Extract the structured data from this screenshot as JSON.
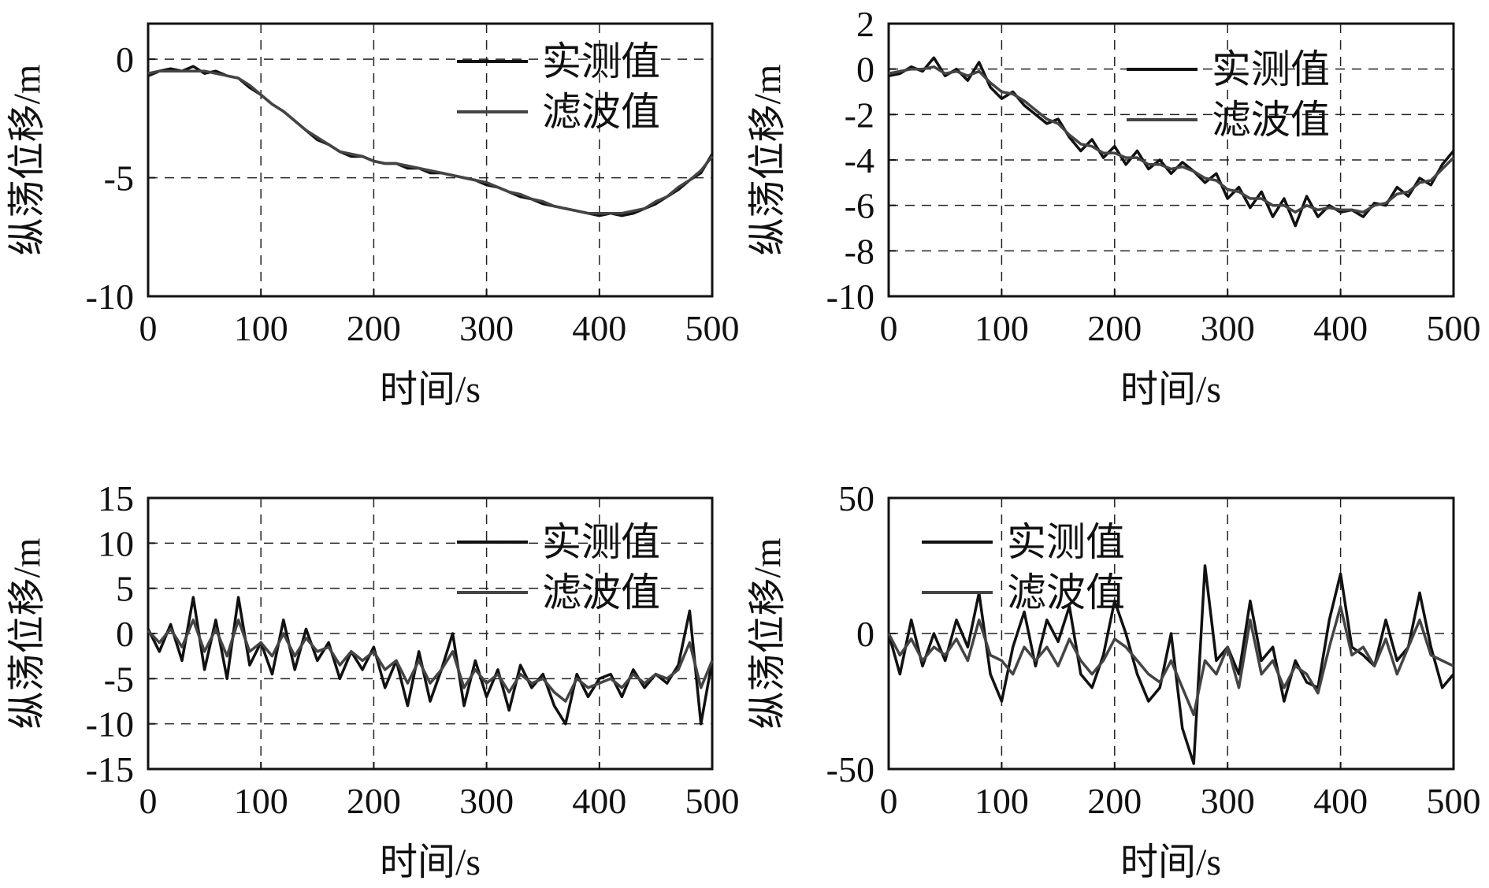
{
  "chart_data": [
    {
      "type": "line",
      "xlabel": "时间/s",
      "ylabel": "纵荡位移/m",
      "xlim": [
        0,
        500
      ],
      "ylim": [
        -10,
        1.5
      ],
      "xticks": [
        0,
        100,
        200,
        300,
        400,
        500
      ],
      "yticks": [
        0,
        -5,
        -10
      ],
      "ytick_labels": [
        "0",
        "-5",
        "-10"
      ],
      "grid": true,
      "legend_position": "top-right",
      "series": [
        {
          "name": "实测值",
          "color": "#111111",
          "x": [
            0,
            10,
            20,
            30,
            40,
            50,
            60,
            70,
            80,
            90,
            100,
            110,
            120,
            130,
            140,
            150,
            160,
            170,
            180,
            190,
            200,
            210,
            220,
            230,
            240,
            250,
            260,
            270,
            280,
            290,
            300,
            310,
            320,
            330,
            340,
            350,
            360,
            370,
            380,
            390,
            400,
            410,
            420,
            430,
            440,
            450,
            460,
            470,
            480,
            490,
            500
          ],
          "y": [
            -0.7,
            -0.5,
            -0.4,
            -0.5,
            -0.3,
            -0.6,
            -0.5,
            -0.7,
            -0.8,
            -1.2,
            -1.5,
            -1.9,
            -2.2,
            -2.6,
            -3.0,
            -3.4,
            -3.6,
            -3.9,
            -4.1,
            -4.1,
            -4.3,
            -4.4,
            -4.4,
            -4.6,
            -4.6,
            -4.8,
            -4.8,
            -4.9,
            -5.0,
            -5.1,
            -5.3,
            -5.4,
            -5.6,
            -5.8,
            -5.9,
            -6.1,
            -6.2,
            -6.3,
            -6.4,
            -6.5,
            -6.6,
            -6.5,
            -6.6,
            -6.5,
            -6.3,
            -6.1,
            -5.8,
            -5.5,
            -5.1,
            -4.8,
            -4.0
          ]
        },
        {
          "name": "滤波值",
          "color": "#444444",
          "x": [
            0,
            10,
            20,
            30,
            40,
            50,
            60,
            70,
            80,
            90,
            100,
            110,
            120,
            130,
            140,
            150,
            160,
            170,
            180,
            190,
            200,
            210,
            220,
            230,
            240,
            250,
            260,
            270,
            280,
            290,
            300,
            310,
            320,
            330,
            340,
            350,
            360,
            370,
            380,
            390,
            400,
            410,
            420,
            430,
            440,
            450,
            460,
            470,
            480,
            490,
            500
          ],
          "y": [
            -0.6,
            -0.5,
            -0.5,
            -0.5,
            -0.5,
            -0.5,
            -0.6,
            -0.7,
            -0.8,
            -1.1,
            -1.5,
            -1.9,
            -2.2,
            -2.6,
            -3.0,
            -3.3,
            -3.6,
            -3.9,
            -4.0,
            -4.1,
            -4.3,
            -4.4,
            -4.4,
            -4.5,
            -4.6,
            -4.7,
            -4.8,
            -4.9,
            -5.0,
            -5.1,
            -5.2,
            -5.4,
            -5.6,
            -5.7,
            -5.9,
            -6.0,
            -6.2,
            -6.3,
            -6.4,
            -6.5,
            -6.5,
            -6.5,
            -6.5,
            -6.4,
            -6.3,
            -6.0,
            -5.8,
            -5.4,
            -5.1,
            -4.7,
            -4.1
          ]
        }
      ]
    },
    {
      "type": "line",
      "xlabel": "时间/s",
      "ylabel": "纵荡位移/m",
      "xlim": [
        0,
        500
      ],
      "ylim": [
        -10,
        2
      ],
      "xticks": [
        0,
        100,
        200,
        300,
        400,
        500
      ],
      "yticks": [
        2,
        0,
        -2,
        -4,
        -6,
        -8,
        -10
      ],
      "ytick_labels": [
        "2",
        "0",
        "-2",
        "-4",
        "-6",
        "-8",
        "-10"
      ],
      "grid": true,
      "legend_position": "top-right",
      "series": [
        {
          "name": "实测值",
          "color": "#111111",
          "x": [
            0,
            10,
            20,
            30,
            40,
            50,
            60,
            70,
            80,
            90,
            100,
            110,
            120,
            130,
            140,
            150,
            160,
            170,
            180,
            190,
            200,
            210,
            220,
            230,
            240,
            250,
            260,
            270,
            280,
            290,
            300,
            310,
            320,
            330,
            340,
            350,
            360,
            370,
            380,
            390,
            400,
            410,
            420,
            430,
            440,
            450,
            460,
            470,
            480,
            490,
            500
          ],
          "y": [
            -0.3,
            -0.2,
            0.1,
            -0.1,
            0.5,
            -0.3,
            0.0,
            -0.5,
            0.3,
            -0.8,
            -1.3,
            -1.0,
            -1.6,
            -2.0,
            -2.4,
            -2.2,
            -3.0,
            -3.6,
            -3.1,
            -3.9,
            -3.4,
            -4.2,
            -3.6,
            -4.4,
            -4.0,
            -4.6,
            -4.1,
            -4.5,
            -5.0,
            -4.6,
            -5.7,
            -5.2,
            -6.1,
            -5.4,
            -6.5,
            -5.7,
            -6.9,
            -5.6,
            -6.5,
            -6.0,
            -6.3,
            -6.2,
            -6.5,
            -5.9,
            -6.0,
            -5.2,
            -5.6,
            -4.8,
            -5.1,
            -4.2,
            -3.6
          ]
        },
        {
          "name": "滤波值",
          "color": "#444444",
          "x": [
            0,
            10,
            20,
            30,
            40,
            50,
            60,
            70,
            80,
            90,
            100,
            110,
            120,
            130,
            140,
            150,
            160,
            170,
            180,
            190,
            200,
            210,
            220,
            230,
            240,
            250,
            260,
            270,
            280,
            290,
            300,
            310,
            320,
            330,
            340,
            350,
            360,
            370,
            380,
            390,
            400,
            410,
            420,
            430,
            440,
            450,
            460,
            470,
            480,
            490,
            500
          ],
          "y": [
            -0.2,
            -0.1,
            0.0,
            0.0,
            0.1,
            -0.2,
            -0.1,
            -0.3,
            -0.1,
            -0.6,
            -1.0,
            -1.1,
            -1.4,
            -1.8,
            -2.2,
            -2.4,
            -2.9,
            -3.3,
            -3.4,
            -3.7,
            -3.7,
            -3.9,
            -3.9,
            -4.2,
            -4.2,
            -4.4,
            -4.3,
            -4.5,
            -4.8,
            -4.9,
            -5.3,
            -5.4,
            -5.7,
            -5.7,
            -6.0,
            -6.0,
            -6.3,
            -6.0,
            -6.2,
            -6.1,
            -6.2,
            -6.2,
            -6.3,
            -6.0,
            -5.9,
            -5.5,
            -5.4,
            -5.0,
            -4.9,
            -4.4,
            -3.9
          ]
        }
      ]
    },
    {
      "type": "line",
      "xlabel": "时间/s",
      "ylabel": "纵荡位移/m",
      "xlim": [
        0,
        500
      ],
      "ylim": [
        -15,
        15
      ],
      "xticks": [
        0,
        100,
        200,
        300,
        400,
        500
      ],
      "yticks": [
        15,
        10,
        5,
        0,
        -5,
        -10,
        -15
      ],
      "ytick_labels": [
        "15",
        "10",
        "5",
        "0",
        "-5",
        "-10",
        "-15"
      ],
      "grid": true,
      "legend_position": "top-right",
      "series": [
        {
          "name": "实测值",
          "color": "#111111",
          "x": [
            0,
            10,
            20,
            30,
            40,
            50,
            60,
            70,
            80,
            90,
            100,
            110,
            120,
            130,
            140,
            150,
            160,
            170,
            180,
            190,
            200,
            210,
            220,
            230,
            240,
            250,
            260,
            270,
            280,
            290,
            300,
            310,
            320,
            330,
            340,
            350,
            360,
            370,
            380,
            390,
            400,
            410,
            420,
            430,
            440,
            450,
            460,
            470,
            480,
            490,
            500
          ],
          "y": [
            0.5,
            -2.0,
            1.0,
            -3.0,
            4.0,
            -4.0,
            1.5,
            -5.0,
            4.0,
            -3.5,
            -1.0,
            -4.5,
            1.5,
            -4.0,
            0.5,
            -3.0,
            -1.0,
            -5.0,
            -2.0,
            -4.0,
            -1.5,
            -6.0,
            -3.0,
            -8.0,
            -2.0,
            -7.5,
            -4.0,
            0.0,
            -8.0,
            -3.0,
            -7.0,
            -4.0,
            -8.5,
            -3.5,
            -6.0,
            -4.5,
            -8.0,
            -10.0,
            -4.5,
            -7.0,
            -5.0,
            -4.5,
            -7.0,
            -4.0,
            -6.0,
            -4.5,
            -5.5,
            -3.5,
            2.5,
            -10.0,
            -3.0
          ]
        },
        {
          "name": "滤波值",
          "color": "#444444",
          "x": [
            0,
            10,
            20,
            30,
            40,
            50,
            60,
            70,
            80,
            90,
            100,
            110,
            120,
            130,
            140,
            150,
            160,
            170,
            180,
            190,
            200,
            210,
            220,
            230,
            240,
            250,
            260,
            270,
            280,
            290,
            300,
            310,
            320,
            330,
            340,
            350,
            360,
            370,
            380,
            390,
            400,
            410,
            420,
            430,
            440,
            450,
            460,
            470,
            480,
            490,
            500
          ],
          "y": [
            0.3,
            -1.0,
            0.5,
            -1.5,
            1.5,
            -2.0,
            0.5,
            -2.5,
            1.5,
            -2.0,
            -1.0,
            -2.5,
            0.0,
            -2.5,
            -0.5,
            -2.0,
            -1.5,
            -3.5,
            -2.0,
            -3.0,
            -2.0,
            -4.0,
            -3.0,
            -5.5,
            -3.0,
            -5.5,
            -4.0,
            -2.0,
            -6.0,
            -4.0,
            -5.5,
            -4.5,
            -6.5,
            -4.5,
            -5.5,
            -5.0,
            -6.5,
            -7.5,
            -5.0,
            -6.0,
            -5.5,
            -5.0,
            -6.0,
            -4.5,
            -5.5,
            -4.5,
            -5.0,
            -4.0,
            -1.0,
            -6.0,
            -3.0
          ]
        }
      ]
    },
    {
      "type": "line",
      "xlabel": "时间/s",
      "ylabel": "纵荡位移/m",
      "xlim": [
        0,
        500
      ],
      "ylim": [
        -50,
        50
      ],
      "xticks": [
        0,
        100,
        200,
        300,
        400,
        500
      ],
      "yticks": [
        50,
        0,
        -50
      ],
      "ytick_labels": [
        "50",
        "0",
        "-50"
      ],
      "grid": true,
      "legend_position": "top-left",
      "series": [
        {
          "name": "实测值",
          "color": "#111111",
          "x": [
            0,
            10,
            20,
            30,
            40,
            50,
            60,
            70,
            80,
            90,
            100,
            110,
            120,
            130,
            140,
            150,
            160,
            170,
            180,
            190,
            200,
            210,
            220,
            230,
            240,
            250,
            260,
            270,
            280,
            290,
            300,
            310,
            320,
            330,
            340,
            350,
            360,
            370,
            380,
            390,
            400,
            410,
            420,
            430,
            440,
            450,
            460,
            470,
            480,
            490,
            500
          ],
          "y": [
            0,
            -15,
            5,
            -12,
            0,
            -10,
            5,
            -5,
            15,
            -15,
            -25,
            -5,
            8,
            -12,
            5,
            -3,
            10,
            -15,
            -20,
            -8,
            12,
            0,
            -15,
            -25,
            -20,
            0,
            -35,
            -48,
            25,
            -10,
            -5,
            -15,
            12,
            -10,
            -5,
            -25,
            -10,
            -18,
            -20,
            5,
            22,
            -5,
            -8,
            -12,
            5,
            -10,
            -5,
            15,
            -5,
            -20,
            -15
          ]
        },
        {
          "name": "滤波值",
          "color": "#444444",
          "x": [
            0,
            10,
            20,
            30,
            40,
            50,
            60,
            70,
            80,
            90,
            100,
            110,
            120,
            130,
            140,
            150,
            160,
            170,
            180,
            190,
            200,
            210,
            220,
            230,
            240,
            250,
            260,
            270,
            280,
            290,
            300,
            310,
            320,
            330,
            340,
            350,
            360,
            370,
            380,
            390,
            400,
            410,
            420,
            430,
            440,
            450,
            460,
            470,
            480,
            490,
            500
          ],
          "y": [
            0,
            -8,
            -2,
            -10,
            -5,
            -8,
            -2,
            -10,
            5,
            -8,
            -10,
            -15,
            -5,
            -10,
            -5,
            -12,
            -2,
            -10,
            -15,
            -10,
            -2,
            -5,
            -10,
            -15,
            -18,
            -10,
            -20,
            -30,
            -10,
            -15,
            -5,
            -20,
            5,
            -15,
            -10,
            -20,
            -12,
            -15,
            -22,
            -5,
            10,
            -8,
            -5,
            -12,
            -2,
            -15,
            -5,
            5,
            -8,
            -10,
            -12
          ]
        }
      ]
    }
  ]
}
